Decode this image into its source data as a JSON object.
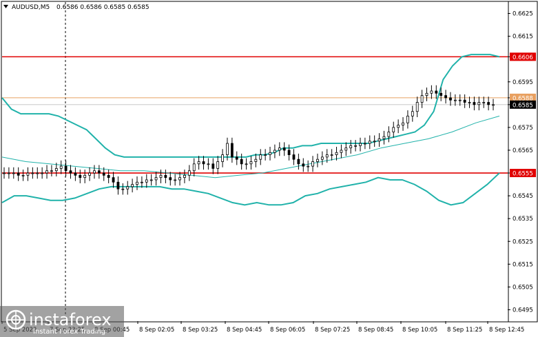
{
  "header": {
    "symbol": "AUDUSD,M5",
    "ohlc": "0.6586 0.6586 0.6585 0.6585"
  },
  "watermark": {
    "brand": "instaforex",
    "tagline": "Instant Forex Trading"
  },
  "colors": {
    "candles": "#000000",
    "bollinger": "#20b2aa",
    "moving_average": "#20b2aa",
    "resistance": "#e00000",
    "support": "#e00000",
    "current_level": "#e8a060",
    "price_tag": "#000000",
    "grid_dash": "#000000"
  },
  "chart_data": {
    "type": "candlestick",
    "symbol": "AUDUSD",
    "timeframe": "M5",
    "ylim": [
      0.649,
      0.663
    ],
    "yticks": [
      "0.6625",
      "0.6615",
      "0.6606",
      "0.6595",
      "0.6588",
      "0.6585",
      "0.6575",
      "0.6565",
      "0.6555",
      "0.6545",
      "0.6535",
      "0.6525",
      "0.6515",
      "0.6505",
      "0.6495"
    ],
    "xticks": [
      "5 Sep 2022",
      "7 Sep 23:25",
      "8 Sep 00:45",
      "8 Sep 02:05",
      "8 Sep 03:25",
      "8 Sep 04:45",
      "8 Sep 06:05",
      "8 Sep 07:25",
      "8 Sep 08:45",
      "8 Sep 10:05",
      "8 Sep 11:25",
      "8 Sep 12:45"
    ],
    "levels": [
      {
        "name": "resistance",
        "value": 0.6606,
        "label": "0.6606"
      },
      {
        "name": "current",
        "value": 0.6588,
        "label": "0.6588"
      },
      {
        "name": "support",
        "value": 0.6555,
        "label": "0.6555"
      }
    ],
    "last_price": {
      "value": 0.6585,
      "label": "0.6585"
    },
    "closes": [
      0.6555,
      0.6555,
      0.6555,
      0.6554,
      0.6554,
      0.6555,
      0.6555,
      0.6555,
      0.6555,
      0.6556,
      0.6556,
      0.6557,
      0.6558,
      0.6556,
      0.6555,
      0.6554,
      0.6553,
      0.6554,
      0.6555,
      0.6556,
      0.6555,
      0.6554,
      0.6553,
      0.6551,
      0.6548,
      0.6548,
      0.6549,
      0.655,
      0.6551,
      0.6551,
      0.6552,
      0.6552,
      0.6553,
      0.6554,
      0.6553,
      0.6552,
      0.6552,
      0.6553,
      0.6554,
      0.6556,
      0.6559,
      0.656,
      0.6559,
      0.6559,
      0.6557,
      0.656,
      0.6563,
      0.6568,
      0.6562,
      0.6561,
      0.6559,
      0.6559,
      0.656,
      0.6561,
      0.6563,
      0.6563,
      0.6564,
      0.6565,
      0.6566,
      0.6565,
      0.6563,
      0.6561,
      0.6559,
      0.6558,
      0.6558,
      0.656,
      0.6561,
      0.6562,
      0.6563,
      0.6563,
      0.6564,
      0.6565,
      0.6566,
      0.6567,
      0.6567,
      0.6568,
      0.6568,
      0.6569,
      0.6569,
      0.657,
      0.6571,
      0.6573,
      0.6575,
      0.6576,
      0.6577,
      0.658,
      0.6582,
      0.6586,
      0.6589,
      0.659,
      0.6591,
      0.659,
      0.6589,
      0.6588,
      0.6587,
      0.6587,
      0.6587,
      0.6586,
      0.6586,
      0.6585,
      0.6586,
      0.6586,
      0.6585,
      0.6585
    ],
    "bollinger_upper": [
      0.6588,
      0.6583,
      0.6581,
      0.6581,
      0.6581,
      0.6581,
      0.658,
      0.6578,
      0.6576,
      0.6574,
      0.657,
      0.6566,
      0.6563,
      0.6562,
      0.6562,
      0.6562,
      0.6562,
      0.6562,
      0.6562,
      0.6562,
      0.6562,
      0.6562,
      0.6562,
      0.6562,
      0.6562,
      0.6562,
      0.6562,
      0.6563,
      0.6563,
      0.6564,
      0.6566,
      0.6566,
      0.6567,
      0.6567,
      0.6568,
      0.6568,
      0.6568,
      0.6568,
      0.6568,
      0.6568,
      0.6569,
      0.657,
      0.6571,
      0.6572,
      0.6573,
      0.6576,
      0.6582,
      0.6596,
      0.6602,
      0.6606,
      0.6607,
      0.6607,
      0.6607,
      0.6606
    ],
    "bollinger_lower": [
      0.6542,
      0.6545,
      0.6545,
      0.6544,
      0.6543,
      0.6543,
      0.6544,
      0.6546,
      0.6548,
      0.6549,
      0.6549,
      0.6549,
      0.6549,
      0.6549,
      0.6548,
      0.6548,
      0.6547,
      0.6546,
      0.6544,
      0.6542,
      0.6541,
      0.6542,
      0.6541,
      0.6541,
      0.6542,
      0.6545,
      0.6546,
      0.6548,
      0.6549,
      0.655,
      0.6551,
      0.6553,
      0.6552,
      0.6552,
      0.655,
      0.6547,
      0.6543,
      0.6541,
      0.6542,
      0.6546,
      0.655,
      0.6555
    ],
    "moving_average": [
      0.6562,
      0.656,
      0.6559,
      0.6558,
      0.6557,
      0.6556,
      0.6556,
      0.6555,
      0.6554,
      0.6553,
      0.6554,
      0.6555,
      0.6557,
      0.6559,
      0.6561,
      0.6563,
      0.6566,
      0.6568,
      0.657,
      0.6573,
      0.6577,
      0.658
    ]
  }
}
